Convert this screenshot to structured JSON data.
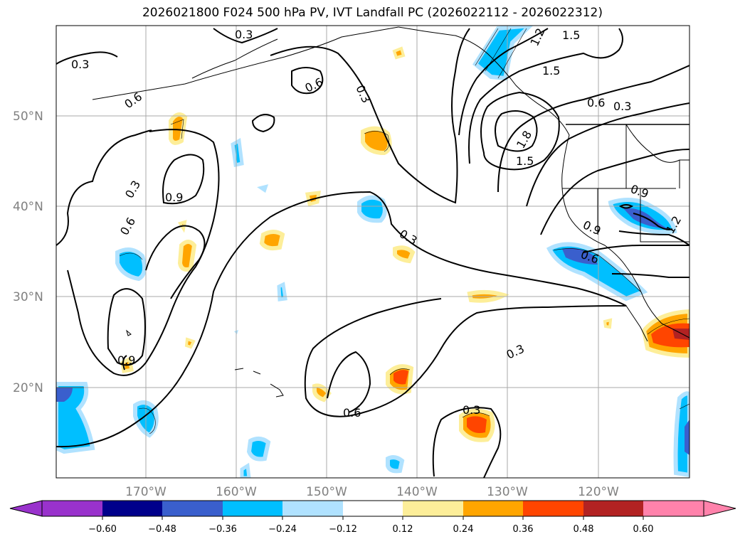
{
  "title": "2026021800 F024 500 hPa PV, IVT Landfall PC (2026022112 - 2026022312)",
  "map": {
    "lat_labels": [
      "50°N",
      "40°N",
      "30°N",
      "20°N"
    ],
    "lon_labels": [
      "170°W",
      "160°W",
      "150°W",
      "140°W",
      "130°W",
      "120°W"
    ],
    "contour_labels": [
      "0.3",
      "0.6",
      "0.3",
      "0.6",
      "0.6",
      "0.3",
      "1.2",
      "1.5",
      "1.5",
      "0.6",
      "0.3",
      "1.8",
      "1.5",
      "0.3",
      "0.9",
      "0.6",
      "0.9",
      "0.9",
      "1.2",
      "0.3",
      "0.9",
      "0.6",
      "0.3",
      "0.6",
      "0.3"
    ]
  },
  "colorbar": {
    "ticks": [
      "−0.60",
      "−0.48",
      "−0.36",
      "−0.24",
      "−0.12",
      "0.12",
      "0.24",
      "0.36",
      "0.48",
      "0.60"
    ],
    "colors": [
      "#9932cc",
      "#00008b",
      "#3a5fcd",
      "#00bfff",
      "#b0e2ff",
      "#ffffff",
      "#fdee99",
      "#ffa500",
      "#ff4500",
      "#b22222",
      "#ff82ab"
    ]
  }
}
